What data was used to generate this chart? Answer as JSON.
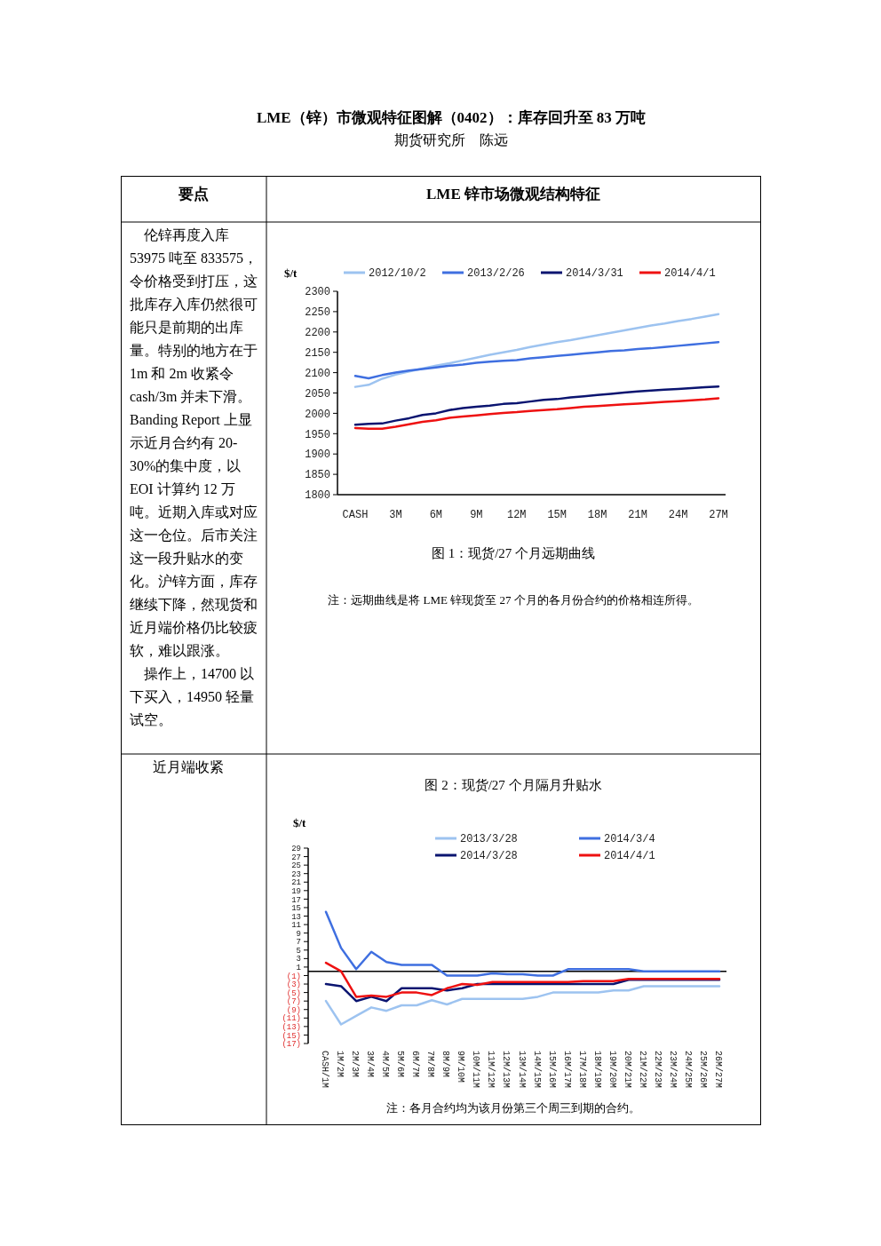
{
  "chart_data": [
    {
      "type": "other",
      "title": "LME（锌）市微观特征图解（0402）：库存回升至 83 万吨",
      "subtitle": "期货研究所　陈远",
      "annotations": [
        "要点",
        "LME 锌市场微观结构特征",
        "伦锌再度入库 53975 吨至 833575，令价格受到打压，这批库存入库仍然很可能只是前期的出库量。特别的地方在于 1m 和 2m 收紧令 cash/3m 并未下滑。Banding Report 上显示近月合约有 20-30%的集中度，以 EOI 计算约 12 万吨。近期入库或对应这一仓位。后市关注这一段升贴水的变化。沪锌方面，库存继续下降，然现货和近月端价格仍比较疲软，难以跟涨。",
        "操作上，14700 以下买入，14950 轻量试空。",
        "近月端收紧"
      ]
    },
    {
      "type": "line",
      "title": "图 1：现货/27 个月远期曲线",
      "ylabel": "$/t",
      "annotations": [
        "注：远期曲线是将 LME 锌现货至 27 个月的各月份合约的价格相连所得。"
      ],
      "legend": "top",
      "categories": [
        "CASH",
        null,
        null,
        "3M",
        null,
        null,
        "6M",
        null,
        null,
        "9M",
        null,
        null,
        "12M",
        null,
        null,
        "15M",
        null,
        null,
        "18M",
        null,
        null,
        "21M",
        null,
        null,
        "24M",
        null,
        null,
        "27M"
      ],
      "ylim": [
        1800,
        2300
      ],
      "yticks": [
        1800,
        1850,
        1900,
        1950,
        2000,
        2050,
        2100,
        2150,
        2200,
        2250,
        2300
      ],
      "series": [
        {
          "name": "2012/10/2",
          "color": "#9dc3f0",
          "values": [
            2065,
            2070,
            2085,
            2095,
            2103,
            2110,
            2117,
            2123,
            2130,
            2137,
            2144,
            2150,
            2156,
            2163,
            2169,
            2175,
            2180,
            2186,
            2192,
            2198,
            2204,
            2210,
            2216,
            2221,
            2227,
            2232,
            2238,
            2244
          ]
        },
        {
          "name": "2013/2/26",
          "color": "#3f6fe0",
          "values": [
            2092,
            2086,
            2094,
            2100,
            2105,
            2109,
            2113,
            2117,
            2120,
            2124,
            2127,
            2129,
            2131,
            2135,
            2138,
            2141,
            2144,
            2147,
            2150,
            2153,
            2155,
            2158,
            2160,
            2163,
            2166,
            2169,
            2172,
            2175
          ]
        },
        {
          "name": "2014/3/31",
          "color": "#0a1470",
          "values": [
            1972,
            1974,
            1975,
            1982,
            1988,
            1996,
            2000,
            2008,
            2013,
            2016,
            2019,
            2023,
            2025,
            2029,
            2033,
            2035,
            2039,
            2042,
            2045,
            2048,
            2051,
            2054,
            2056,
            2058,
            2060,
            2062,
            2064,
            2066
          ]
        },
        {
          "name": "2014/4/1",
          "color": "#ee1111",
          "values": [
            1964,
            1962,
            1962,
            1967,
            1973,
            1979,
            1983,
            1989,
            1992,
            1995,
            1998,
            2001,
            2003,
            2006,
            2008,
            2010,
            2013,
            2016,
            2018,
            2020,
            2022,
            2024,
            2026,
            2028,
            2030,
            2032,
            2034,
            2037
          ]
        }
      ]
    },
    {
      "type": "line",
      "title": "图 2：现货/27 个月隔月升贴水",
      "ylabel": "$/t",
      "annotations": [
        "注：各月合约均为该月份第三个周三到期的合约。"
      ],
      "legend": "top",
      "categories": [
        "CASH/1M",
        "1M/2M",
        "2M/3M",
        "3M/4M",
        "4M/5M",
        "5M/6M",
        "6M/7M",
        "7M/8M",
        "8M/9M",
        "9M/10M",
        "10M/11M",
        "11M/12M",
        "12M/13M",
        "13M/14M",
        "14M/15M",
        "15M/16M",
        "16M/17M",
        "17M/18M",
        "18M/19M",
        "19M/20M",
        "20M/21M",
        "21M/22M",
        "22M/23M",
        "23M/24M",
        "24M/25M",
        "25M/26M",
        "26M/27M"
      ],
      "ylim": [
        -17,
        29
      ],
      "yticks": [
        {
          "value": -17,
          "label": "(17)"
        },
        {
          "value": -15,
          "label": "(15)"
        },
        {
          "value": -13,
          "label": "(13)"
        },
        {
          "value": -11,
          "label": "(11)"
        },
        {
          "value": -9,
          "label": "(9)"
        },
        {
          "value": -7,
          "label": "(7)"
        },
        {
          "value": -5,
          "label": "(5)"
        },
        {
          "value": -3,
          "label": "(3)"
        },
        {
          "value": -1,
          "label": "(1)"
        },
        1,
        3,
        5,
        7,
        9,
        11,
        13,
        15,
        17,
        19,
        21,
        23,
        25,
        27,
        29
      ],
      "series": [
        {
          "name": "2013/3/28",
          "color": "#9dc3f0",
          "values": [
            -7,
            -12.5,
            -10.5,
            -8.5,
            -9.3,
            -8,
            -8,
            -6.8,
            -7.8,
            -6.5,
            -6.5,
            -6.5,
            -6.5,
            -6.5,
            -6,
            -5,
            -5,
            -5,
            -5,
            -4.5,
            -4.5,
            -3.5,
            -3.5,
            -3.5,
            -3.5,
            -3.5,
            -3.5
          ]
        },
        {
          "name": "2014/3/4",
          "color": "#3f6fe0",
          "values": [
            14,
            5.5,
            0.5,
            4.6,
            2.2,
            1.5,
            1.5,
            1.5,
            -1,
            -1,
            -1,
            -0.5,
            -0.7,
            -0.7,
            -1,
            -1,
            0.5,
            0.5,
            0.5,
            0.5,
            0.5,
            0,
            0,
            0,
            0,
            0,
            0
          ]
        },
        {
          "name": "2014/3/28",
          "color": "#0a1470",
          "values": [
            -3,
            -3.5,
            -7,
            -6,
            -7,
            -4,
            -4,
            -4,
            -4.5,
            -4,
            -3,
            -3,
            -3,
            -3,
            -3,
            -3,
            -3,
            -3,
            -3,
            -3,
            -2,
            -2,
            -2,
            -2,
            -2,
            -2,
            -2
          ]
        },
        {
          "name": "2014/4/1",
          "color": "#ee1111",
          "values": [
            2,
            0,
            -6,
            -5.7,
            -6,
            -5,
            -5,
            -5.6,
            -4,
            -3,
            -3.2,
            -2.5,
            -2.5,
            -2.5,
            -2.5,
            -2.5,
            -2.5,
            -2.3,
            -2.3,
            -2.3,
            -1.8,
            -1.8,
            -1.8,
            -1.8,
            -1.8,
            -1.8,
            -1.8
          ]
        }
      ]
    }
  ]
}
